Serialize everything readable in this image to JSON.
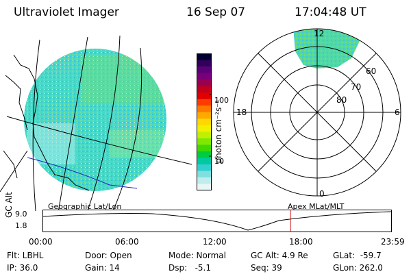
{
  "header": {
    "instrument": "Ultraviolet Imager",
    "date": "16 Sep 07",
    "time": "17:04:48 UT"
  },
  "colorbar": {
    "label": "photon cm⁻²s⁻¹",
    "ticks": [
      "100",
      "10"
    ],
    "colors": [
      "#000030",
      "#30005a",
      "#5a0078",
      "#7a007a",
      "#9a0050",
      "#c0001c",
      "#e00000",
      "#ff3c00",
      "#ff7800",
      "#ffa800",
      "#ffd800",
      "#f0f000",
      "#c0f000",
      "#80e800",
      "#40d800",
      "#00cc40",
      "#00c8a0",
      "#30d0d0",
      "#80e0e0",
      "#c0ecec",
      "#e8f6f6"
    ]
  },
  "polar_plot": {
    "mlt_labels": {
      "top": "12",
      "left": "18",
      "right": "6",
      "bottom": "0"
    },
    "lat_labels": [
      "60",
      "70",
      "80"
    ]
  },
  "timeline": {
    "y_axis_label": "GC Alt",
    "y_ticks": [
      "9.0",
      "1.8"
    ],
    "left_title": "Geographic Lat/Lon",
    "right_title": "Apex  MLat/MLT",
    "x_ticks": [
      "00:00",
      "06:00",
      "12:00",
      "18:00",
      "23:59"
    ],
    "marker_time_hours": 17.08
  },
  "info": {
    "filt": "Flt: LBHL",
    "ip": "IP: 36.0",
    "door": "Door: Open",
    "gain": "Gain: 14",
    "mode": "Mode: Normal",
    "dsp": "Dsp:   -5.1",
    "gc_alt": "GC Alt: 4.9 Re",
    "seq": "Seq: 39",
    "glat": "GLat:  -59.7",
    "glon": "GLon: 262.0"
  }
}
